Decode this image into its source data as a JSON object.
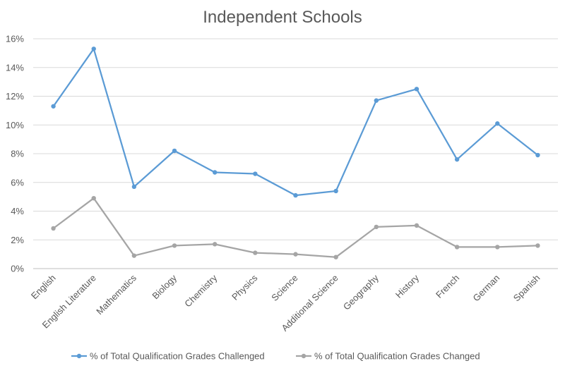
{
  "chart_data": {
    "type": "line",
    "title": "Independent Schools",
    "xlabel": "",
    "ylabel": "",
    "categories": [
      "English",
      "English Literature",
      "Mathematics",
      "Biology",
      "Chemistry",
      "Physics",
      "Science",
      "Additional Science",
      "Geography",
      "History",
      "French",
      "German",
      "Spanish"
    ],
    "ylim": [
      0,
      16
    ],
    "yticks": [
      "0%",
      "2%",
      "4%",
      "6%",
      "8%",
      "10%",
      "12%",
      "14%",
      "16%"
    ],
    "grid": true,
    "legend": "bottom",
    "series": [
      {
        "name": "% of Total Qualification Grades Challenged",
        "color": "#5b9bd5",
        "values": [
          11.3,
          15.3,
          5.7,
          8.2,
          6.7,
          6.6,
          5.1,
          5.4,
          11.7,
          12.5,
          7.6,
          10.1,
          7.9
        ]
      },
      {
        "name": "% of Total Qualification Grades Changed",
        "color": "#a5a5a5",
        "values": [
          2.8,
          4.9,
          0.9,
          1.6,
          1.7,
          1.1,
          1.0,
          0.8,
          2.9,
          3.0,
          1.5,
          1.5,
          1.6
        ]
      }
    ]
  }
}
